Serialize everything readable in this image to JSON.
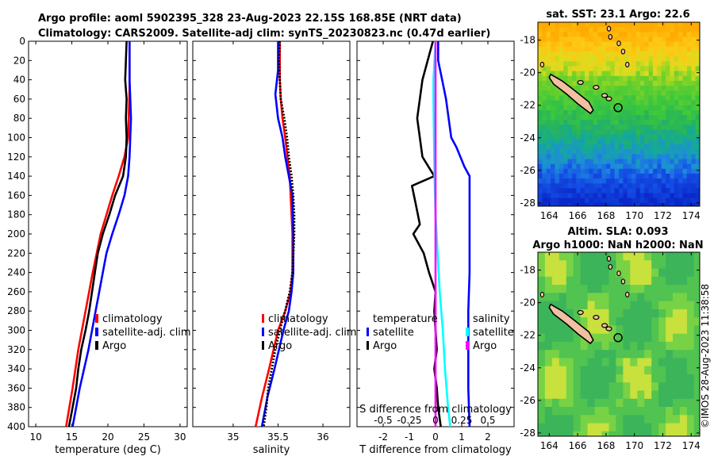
{
  "title_line1": "Argo profile: aoml 5902395_328 23-Aug-2023 22.15S 168.85E (NRT data)",
  "title_line2": "Climatology: CARS2009. Satellite-adj clim: synTS_20230823.nc (0.47d earlier)",
  "watermark": "©IMOS 28-Aug-2023 11:38:58",
  "colors": {
    "climatology": "#ff0000",
    "satellite": "#0000ff",
    "argo": "#000000",
    "cyan": "#00ffff",
    "magenta": "#ff00ff"
  },
  "chart_data": [
    {
      "type": "line",
      "id": "temperature",
      "xlabel": "temperature (deg C)",
      "xlim": [
        9,
        31
      ],
      "xticks": [
        10,
        15,
        20,
        25,
        30
      ],
      "ylim": [
        0,
        400
      ],
      "yticks": [
        0,
        20,
        40,
        60,
        80,
        100,
        120,
        140,
        160,
        180,
        200,
        220,
        240,
        260,
        280,
        300,
        320,
        340,
        360,
        380,
        400
      ],
      "legend": [
        "climatology",
        "satellite-adj. clim",
        "Argo"
      ],
      "series": [
        {
          "name": "climatology",
          "color": "#ff0000",
          "depth": [
            0,
            50,
            100,
            120,
            140,
            160,
            180,
            200,
            240,
            280,
            320,
            360,
            400
          ],
          "values": [
            23.0,
            23.0,
            22.8,
            22.3,
            21.5,
            20.6,
            19.8,
            19.0,
            17.9,
            16.9,
            15.9,
            15.1,
            14.2
          ]
        },
        {
          "name": "satellite-adj. clim",
          "color": "#0000ff",
          "depth": [
            0,
            40,
            80,
            120,
            140,
            160,
            180,
            200,
            220,
            240,
            260,
            280,
            320,
            360,
            400
          ],
          "values": [
            23.0,
            23.0,
            23.2,
            23.0,
            22.8,
            22.3,
            21.5,
            20.6,
            19.8,
            19.3,
            18.8,
            18.3,
            17.3,
            16.1,
            15.1
          ]
        },
        {
          "name": "Argo",
          "color": "#000000",
          "depth": [
            0,
            20,
            40,
            60,
            80,
            100,
            120,
            140,
            160,
            180,
            200,
            220,
            240,
            260,
            280,
            300,
            320,
            340,
            360,
            380,
            400
          ],
          "values": [
            22.6,
            22.5,
            22.4,
            22.6,
            22.5,
            22.6,
            22.5,
            22.1,
            21.0,
            20.2,
            19.3,
            18.6,
            18.2,
            17.8,
            17.4,
            16.9,
            16.3,
            15.9,
            15.6,
            15.1,
            14.6
          ]
        }
      ]
    },
    {
      "type": "line",
      "id": "salinity",
      "xlabel": "salinity",
      "xlim": [
        34.55,
        36.3
      ],
      "xticks": [
        35,
        35.5,
        36
      ],
      "ylim": [
        0,
        400
      ],
      "legend": [
        "climatology",
        "satellite-adj. clim",
        "Argo"
      ],
      "series": [
        {
          "name": "climatology",
          "color": "#ff0000",
          "depth": [
            0,
            40,
            60,
            80,
            100,
            140,
            180,
            200,
            240,
            260,
            280,
            300,
            340,
            370,
            400
          ],
          "values": [
            35.52,
            35.52,
            35.53,
            35.55,
            35.58,
            35.63,
            35.65,
            35.66,
            35.66,
            35.64,
            35.58,
            35.5,
            35.4,
            35.32,
            35.25
          ]
        },
        {
          "name": "satellite-adj. clim",
          "color": "#0000ff",
          "depth": [
            0,
            30,
            55,
            80,
            100,
            120,
            140,
            160,
            200,
            240,
            260,
            280,
            300,
            340,
            370,
            400
          ],
          "values": [
            35.5,
            35.5,
            35.47,
            35.5,
            35.55,
            35.58,
            35.62,
            35.66,
            35.67,
            35.67,
            35.65,
            35.62,
            35.56,
            35.46,
            35.38,
            35.32
          ]
        },
        {
          "name": "Argo",
          "color": "#000000",
          "dotted": true,
          "depth": [
            0,
            20,
            40,
            60,
            80,
            100,
            120,
            140,
            160,
            180,
            200,
            240,
            260,
            280,
            300,
            320,
            340,
            360,
            380,
            400
          ],
          "values": [
            35.52,
            35.51,
            35.52,
            35.53,
            35.57,
            35.6,
            35.62,
            35.65,
            35.67,
            35.68,
            35.68,
            35.66,
            35.63,
            35.58,
            35.52,
            35.47,
            35.43,
            35.39,
            35.37,
            35.34
          ]
        }
      ]
    },
    {
      "type": "line",
      "id": "differences",
      "xlabel": "T difference from climatology",
      "x2label": "S difference from climatology",
      "xlim": [
        -3,
        3
      ],
      "xticks": [
        "-2",
        "-1",
        "0",
        "1",
        "2"
      ],
      "xtick_values": [
        -2,
        -1,
        0,
        1,
        2
      ],
      "x2ticks": [
        "-0.5",
        "-0.25",
        "0",
        "0.25",
        "0.5"
      ],
      "x2tick_values": [
        -0.5,
        -0.25,
        0,
        0.25,
        0.5
      ],
      "ylim": [
        0,
        400
      ],
      "legend_left": [
        "temperature",
        "satellite",
        "Argo"
      ],
      "legend_right": [
        "salinity",
        "satellite",
        "Argo"
      ],
      "series": [
        {
          "name": "T satellite - clim",
          "color": "#0000ff",
          "depth": [
            0,
            20,
            40,
            60,
            80,
            100,
            110,
            130,
            140,
            160,
            200,
            240,
            280,
            320,
            360,
            400
          ],
          "values": [
            0.1,
            0.1,
            0.25,
            0.4,
            0.5,
            0.6,
            0.8,
            1.1,
            1.3,
            1.3,
            1.3,
            1.3,
            1.25,
            1.25,
            1.25,
            1.3
          ]
        },
        {
          "name": "T Argo - clim",
          "color": "#000000",
          "depth": [
            0,
            20,
            40,
            60,
            80,
            100,
            120,
            140,
            150,
            170,
            190,
            200,
            220,
            240,
            260,
            280,
            300,
            320,
            340,
            360,
            380,
            400
          ],
          "values": [
            -0.1,
            -0.3,
            -0.5,
            -0.6,
            -0.7,
            -0.6,
            -0.5,
            -0.05,
            -0.9,
            -0.75,
            -0.6,
            -0.85,
            -0.45,
            -0.25,
            0.0,
            -0.05,
            0.0,
            0.05,
            -0.05,
            0.05,
            0.1,
            0.2
          ]
        },
        {
          "name": "S satellite - clim",
          "color": "#00ffff",
          "s_scale": true,
          "depth": [
            0,
            20,
            40,
            60,
            100,
            140,
            180,
            220,
            260,
            300,
            340,
            380,
            400
          ],
          "values": [
            0.0,
            -0.01,
            -0.02,
            -0.02,
            -0.015,
            -0.01,
            0.0,
            0.02,
            0.04,
            0.07,
            0.09,
            0.12,
            0.14
          ]
        },
        {
          "name": "S Argo - clim",
          "color": "#ff00ff",
          "s_scale": true,
          "depth": [
            0,
            400
          ],
          "values": [
            0.0,
            0.0
          ]
        }
      ]
    },
    {
      "type": "heatmap",
      "id": "sst_map",
      "title": "sat. SST: 23.1 Argo: 22.6",
      "xticks": [
        "164",
        "166",
        "168",
        "170",
        "172",
        "174"
      ],
      "xtick_values": [
        164,
        166,
        168,
        170,
        172,
        174
      ],
      "yticks": [
        "-18",
        "-20",
        "-22",
        "-24",
        "-26",
        "-28"
      ],
      "ytick_values": [
        -18,
        -20,
        -22,
        -24,
        -26,
        -28
      ],
      "xlim": [
        163.2,
        174.6
      ],
      "ylim": [
        -28.2,
        -16.9
      ],
      "float_position": [
        168.85,
        -22.15
      ]
    },
    {
      "type": "heatmap",
      "id": "sla_map",
      "title1": "Altim. SLA: 0.093",
      "title2": "Argo h1000: NaN h2000: NaN",
      "xticks": [
        "164",
        "166",
        "168",
        "170",
        "172",
        "174"
      ],
      "xtick_values": [
        164,
        166,
        168,
        170,
        172,
        174
      ],
      "yticks": [
        "-18",
        "-20",
        "-22",
        "-24",
        "-26",
        "-28"
      ],
      "ytick_values": [
        -18,
        -20,
        -22,
        -24,
        -26,
        -28
      ],
      "xlim": [
        163.2,
        174.6
      ],
      "ylim": [
        -28.2,
        -16.9
      ],
      "float_position": [
        168.85,
        -22.15
      ]
    }
  ]
}
